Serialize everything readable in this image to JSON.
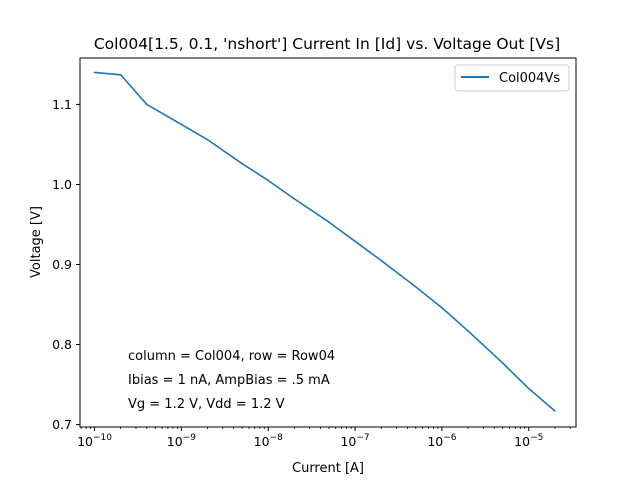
{
  "chart_data": {
    "type": "line",
    "title": "Col004[1.5, 0.1, 'nshort'] Current In [Id] vs. Voltage Out [Vs]",
    "xlabel": "Current [A]",
    "ylabel": "Voltage [V]",
    "xscale": "log",
    "xlim": [
      6.8e-11,
      3.5e-05
    ],
    "ylim": [
      0.697,
      1.158
    ],
    "xticks": [
      {
        "value": 1e-10,
        "base": "10",
        "exp": "−10"
      },
      {
        "value": 1e-09,
        "base": "10",
        "exp": "−9"
      },
      {
        "value": 1e-08,
        "base": "10",
        "exp": "−8"
      },
      {
        "value": 1e-07,
        "base": "10",
        "exp": "−7"
      },
      {
        "value": 1e-06,
        "base": "10",
        "exp": "−6"
      },
      {
        "value": 1e-05,
        "base": "10",
        "exp": "−5"
      }
    ],
    "yticks": [
      {
        "value": 0.7,
        "label": "0.7"
      },
      {
        "value": 0.8,
        "label": "0.8"
      },
      {
        "value": 0.9,
        "label": "0.9"
      },
      {
        "value": 1.0,
        "label": "1.0"
      },
      {
        "value": 1.1,
        "label": "1.1"
      }
    ],
    "grid": false,
    "legend_position": "top-right",
    "series": [
      {
        "name": "Col004Vs",
        "color": "#1f77b4",
        "x": [
          1e-10,
          2e-10,
          4e-10,
          1e-09,
          2e-09,
          5e-09,
          1e-08,
          2e-08,
          5e-08,
          1e-07,
          2e-07,
          5e-07,
          1e-06,
          2e-06,
          5e-06,
          1e-05,
          2e-05
        ],
        "y": [
          1.14,
          1.137,
          1.1,
          1.075,
          1.056,
          1.026,
          1.005,
          0.982,
          0.953,
          0.929,
          0.905,
          0.872,
          0.846,
          0.817,
          0.777,
          0.745,
          0.717
        ]
      }
    ],
    "annotations": [
      "column = Col004, row = Row04",
      "Ibias = 1 nA, AmpBias = .5 mA",
      "Vg = 1.2 V, Vdd = 1.2 V"
    ]
  }
}
